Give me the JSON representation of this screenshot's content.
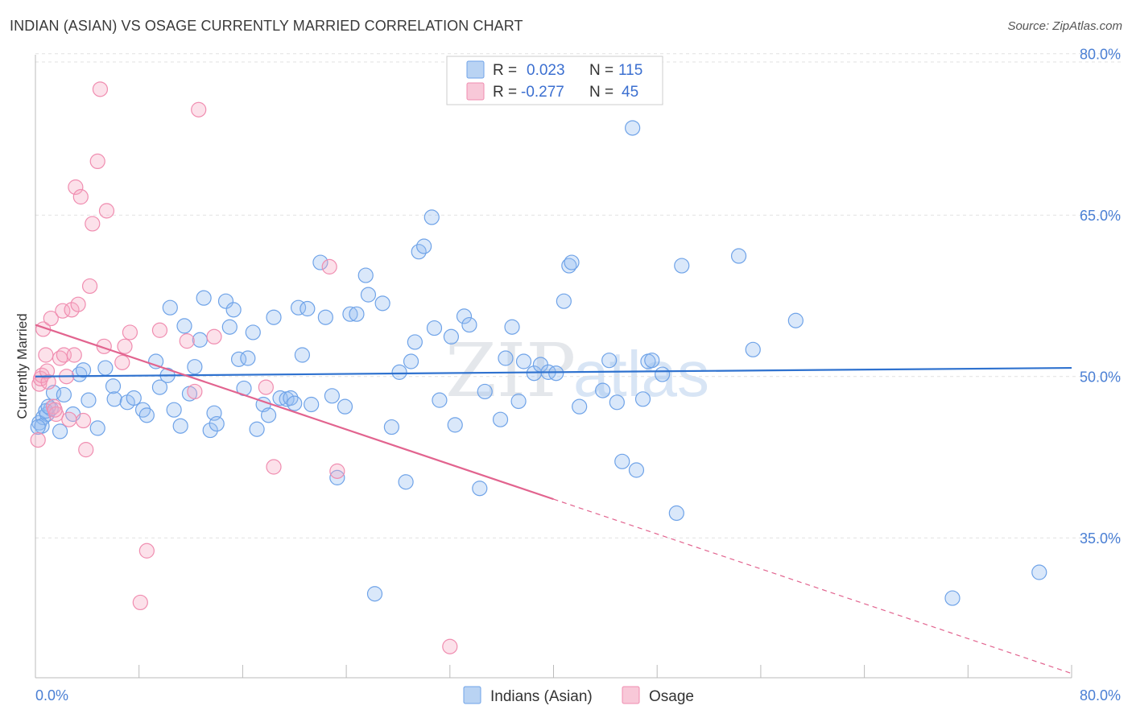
{
  "title": "INDIAN (ASIAN) VS OSAGE CURRENTLY MARRIED CORRELATION CHART",
  "source": "Source: ZipAtlas.com",
  "watermark": {
    "part1": "ZIP",
    "part2": "atlas"
  },
  "legend": {
    "rows": [
      {
        "r_label": "R =",
        "r_value": "0.023",
        "n_label": "N =",
        "n_value": "115"
      },
      {
        "r_label": "R =",
        "r_value": "-0.277",
        "n_label": "N =",
        "n_value": "45"
      }
    ]
  },
  "colors": {
    "blue": "#6fa3e8",
    "blue_line": "#2f72cf",
    "pink": "#f08db0",
    "pink_line": "#e2648f"
  },
  "chart_data": {
    "type": "scatter",
    "title": "INDIAN (ASIAN) VS OSAGE CURRENTLY MARRIED CORRELATION CHART",
    "xlabel": "",
    "ylabel": "Currently Married",
    "xlim": [
      0,
      80
    ],
    "ylim": [
      22,
      82
    ],
    "x_tick_labels": [
      "0.0%",
      "80.0%"
    ],
    "y_ticks": [
      35,
      50,
      65,
      80
    ],
    "y_tick_labels": [
      "35.0%",
      "50.0%",
      "65.0%",
      "80.0%"
    ],
    "grid": true,
    "legend_position": "top-center",
    "series": [
      {
        "name": "Indians (Asian)",
        "color": "#6fa3e8",
        "R": 0.023,
        "N": 115,
        "trend": {
          "x": [
            0,
            80
          ],
          "y": [
            50.0,
            50.8
          ],
          "dashed_from": null
        },
        "points": [
          [
            0.3,
            45.7
          ],
          [
            0.6,
            46.2
          ],
          [
            0.9,
            46.5
          ],
          [
            1.2,
            47.0
          ],
          [
            1.4,
            48.5
          ],
          [
            0.5,
            45.4
          ],
          [
            0.8,
            46.8
          ],
          [
            1.0,
            47.2
          ],
          [
            1.9,
            44.9
          ],
          [
            2.2,
            48.3
          ],
          [
            2.9,
            46.5
          ],
          [
            3.4,
            50.2
          ],
          [
            3.7,
            50.6
          ],
          [
            4.1,
            47.8
          ],
          [
            4.8,
            45.2
          ],
          [
            5.4,
            50.8
          ],
          [
            6.0,
            49.1
          ],
          [
            6.1,
            47.9
          ],
          [
            7.1,
            47.6
          ],
          [
            7.6,
            48.0
          ],
          [
            8.3,
            46.9
          ],
          [
            8.6,
            46.4
          ],
          [
            9.3,
            51.4
          ],
          [
            9.6,
            49.0
          ],
          [
            10.2,
            50.1
          ],
          [
            10.4,
            56.4
          ],
          [
            10.7,
            46.9
          ],
          [
            11.2,
            45.4
          ],
          [
            11.5,
            54.7
          ],
          [
            11.9,
            48.4
          ],
          [
            12.3,
            50.9
          ],
          [
            12.7,
            53.4
          ],
          [
            13.0,
            57.3
          ],
          [
            13.5,
            45.0
          ],
          [
            13.8,
            46.6
          ],
          [
            14.0,
            45.6
          ],
          [
            14.7,
            57.0
          ],
          [
            15.0,
            54.6
          ],
          [
            15.3,
            56.2
          ],
          [
            15.7,
            51.6
          ],
          [
            16.1,
            48.9
          ],
          [
            16.4,
            51.7
          ],
          [
            16.8,
            54.1
          ],
          [
            17.1,
            45.1
          ],
          [
            17.6,
            47.4
          ],
          [
            18.0,
            46.4
          ],
          [
            18.4,
            55.5
          ],
          [
            18.9,
            48.0
          ],
          [
            19.4,
            47.9
          ],
          [
            19.7,
            48.0
          ],
          [
            20.0,
            47.5
          ],
          [
            20.3,
            56.4
          ],
          [
            20.6,
            52.0
          ],
          [
            21.0,
            56.3
          ],
          [
            21.3,
            47.4
          ],
          [
            22.0,
            60.6
          ],
          [
            22.4,
            55.5
          ],
          [
            22.9,
            48.2
          ],
          [
            23.3,
            40.6
          ],
          [
            23.9,
            47.2
          ],
          [
            24.3,
            55.8
          ],
          [
            24.8,
            55.8
          ],
          [
            25.5,
            59.4
          ],
          [
            25.7,
            57.6
          ],
          [
            26.2,
            29.8
          ],
          [
            26.8,
            56.8
          ],
          [
            27.5,
            45.3
          ],
          [
            28.1,
            50.4
          ],
          [
            28.6,
            40.2
          ],
          [
            29.0,
            51.4
          ],
          [
            29.3,
            53.2
          ],
          [
            29.6,
            61.6
          ],
          [
            30.0,
            62.1
          ],
          [
            30.6,
            64.8
          ],
          [
            30.8,
            54.5
          ],
          [
            31.2,
            47.8
          ],
          [
            32.1,
            53.7
          ],
          [
            32.4,
            45.5
          ],
          [
            33.1,
            55.6
          ],
          [
            33.5,
            54.8
          ],
          [
            34.3,
            39.6
          ],
          [
            34.7,
            48.6
          ],
          [
            35.9,
            46.0
          ],
          [
            36.3,
            51.7
          ],
          [
            36.8,
            54.6
          ],
          [
            37.3,
            47.7
          ],
          [
            37.7,
            51.4
          ],
          [
            38.5,
            50.3
          ],
          [
            39.0,
            51.1
          ],
          [
            39.6,
            50.4
          ],
          [
            40.2,
            50.3
          ],
          [
            40.8,
            57.0
          ],
          [
            41.2,
            60.3
          ],
          [
            41.4,
            60.6
          ],
          [
            42.0,
            47.2
          ],
          [
            43.8,
            48.7
          ],
          [
            44.3,
            51.5
          ],
          [
            44.9,
            47.6
          ],
          [
            45.3,
            42.1
          ],
          [
            46.1,
            73.1
          ],
          [
            46.4,
            41.3
          ],
          [
            46.9,
            47.9
          ],
          [
            47.3,
            51.4
          ],
          [
            47.6,
            51.5
          ],
          [
            48.4,
            50.2
          ],
          [
            49.5,
            37.3
          ],
          [
            49.9,
            60.3
          ],
          [
            54.3,
            61.2
          ],
          [
            55.4,
            52.5
          ],
          [
            58.7,
            55.2
          ],
          [
            70.8,
            29.4
          ],
          [
            77.5,
            31.8
          ],
          [
            0.2,
            45.3
          ]
        ]
      },
      {
        "name": "Osage",
        "color": "#f08db0",
        "R": -0.277,
        "N": 45,
        "trend": {
          "x": [
            0,
            80
          ],
          "y": [
            54.8,
            22.4
          ],
          "dashed_from": 40
        },
        "points": [
          [
            0.2,
            44.1
          ],
          [
            0.3,
            49.3
          ],
          [
            0.4,
            49.8
          ],
          [
            0.5,
            50.1
          ],
          [
            0.6,
            54.4
          ],
          [
            0.8,
            52.0
          ],
          [
            1.0,
            49.5
          ],
          [
            1.2,
            55.4
          ],
          [
            1.4,
            47.2
          ],
          [
            1.6,
            46.5
          ],
          [
            1.9,
            51.7
          ],
          [
            2.1,
            56.1
          ],
          [
            2.2,
            52.0
          ],
          [
            2.4,
            50.0
          ],
          [
            2.6,
            46.0
          ],
          [
            2.8,
            56.2
          ],
          [
            3.0,
            52.0
          ],
          [
            3.1,
            67.6
          ],
          [
            3.3,
            56.7
          ],
          [
            3.5,
            66.7
          ],
          [
            3.7,
            45.9
          ],
          [
            3.9,
            43.2
          ],
          [
            4.2,
            58.4
          ],
          [
            4.8,
            70.0
          ],
          [
            5.0,
            76.7
          ],
          [
            5.3,
            52.8
          ],
          [
            5.5,
            65.4
          ],
          [
            6.7,
            51.3
          ],
          [
            6.9,
            52.8
          ],
          [
            7.3,
            54.1
          ],
          [
            8.1,
            29.0
          ],
          [
            8.6,
            33.8
          ],
          [
            9.6,
            54.3
          ],
          [
            11.7,
            53.3
          ],
          [
            12.3,
            48.6
          ],
          [
            13.8,
            53.7
          ],
          [
            12.6,
            74.8
          ],
          [
            17.8,
            49.0
          ],
          [
            18.4,
            41.6
          ],
          [
            22.7,
            60.2
          ],
          [
            23.3,
            41.2
          ],
          [
            32.0,
            24.9
          ],
          [
            4.4,
            64.2
          ],
          [
            1.5,
            46.9
          ],
          [
            0.9,
            50.5
          ]
        ]
      }
    ]
  }
}
